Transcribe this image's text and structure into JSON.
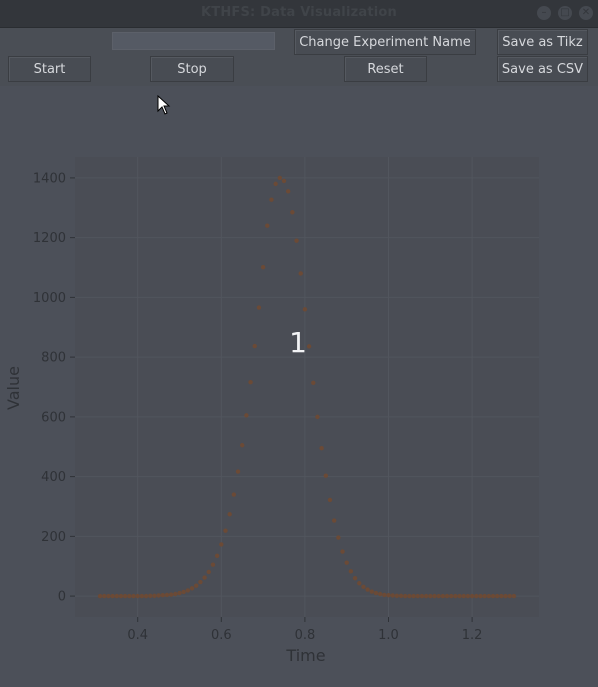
{
  "window": {
    "title": "KTHFS: Data Visualization",
    "controls": [
      "minimize-icon",
      "maximize-icon",
      "close-icon"
    ]
  },
  "toolbar": {
    "experiment_name_value": "",
    "change_name_label": "Change Experiment Name",
    "save_tikz_label": "Save as Tikz",
    "start_label": "Start",
    "stop_label": "Stop",
    "reset_label": "Reset",
    "save_csv_label": "Save as CSV"
  },
  "plot": {
    "overlay_label": "1"
  },
  "colors": {
    "background": "#4c5059",
    "plot_area": "#4a4d55",
    "marker": "#6b4a36",
    "text": "#d6d8dc",
    "axis_text": "#2f3237"
  },
  "chart_data": {
    "type": "scatter",
    "title": "",
    "xlabel": "Time",
    "ylabel": "Value",
    "xlim": [
      0.25,
      1.36
    ],
    "ylim": [
      -70,
      1470
    ],
    "xticks": [
      "0.4",
      "0.6",
      "0.8",
      "1.0",
      "1.2"
    ],
    "yticks": [
      "0",
      "200",
      "400",
      "600",
      "800",
      "1000",
      "1200",
      "1400"
    ],
    "grid": true,
    "legend": "none",
    "series": [
      {
        "x": [
          0.31,
          0.32,
          0.33,
          0.34,
          0.35,
          0.36,
          0.37,
          0.38,
          0.39,
          0.4,
          0.41,
          0.42,
          0.43,
          0.44,
          0.45,
          0.46,
          0.47,
          0.48,
          0.49,
          0.5,
          0.51,
          0.52,
          0.53,
          0.54,
          0.55,
          0.56,
          0.57,
          0.58,
          0.59,
          0.6,
          0.61,
          0.62,
          0.63,
          0.64,
          0.65,
          0.66,
          0.67,
          0.68,
          0.69,
          0.7,
          0.71,
          0.72,
          0.73,
          0.74,
          0.75,
          0.76,
          0.77,
          0.78,
          0.79,
          0.8,
          0.81,
          0.82,
          0.83,
          0.84,
          0.85,
          0.86,
          0.87,
          0.88,
          0.89,
          0.9,
          0.91,
          0.92,
          0.93,
          0.94,
          0.95,
          0.96,
          0.97,
          0.98,
          0.99,
          1.0,
          1.01,
          1.02,
          1.03,
          1.04,
          1.05,
          1.06,
          1.07,
          1.08,
          1.09,
          1.1,
          1.11,
          1.12,
          1.13,
          1.14,
          1.15,
          1.16,
          1.17,
          1.18,
          1.19,
          1.2,
          1.21,
          1.22,
          1.23,
          1.24,
          1.25,
          1.26,
          1.27,
          1.28,
          1.29,
          1.3
        ],
        "y": [
          0,
          0,
          0,
          0,
          0,
          0,
          0,
          0,
          0,
          0,
          0,
          0,
          1,
          1,
          2,
          3,
          4,
          5,
          7,
          10,
          14,
          19,
          26,
          35,
          47,
          62,
          81,
          105,
          135,
          173,
          219,
          274,
          340,
          417,
          505,
          605,
          716,
          837,
          966,
          1101,
          1240,
          1327,
          1380,
          1400,
          1390,
          1355,
          1285,
          1190,
          1080,
          960,
          836,
          714,
          600,
          495,
          403,
          322,
          253,
          196,
          149,
          112,
          83,
          60,
          43,
          31,
          22,
          15,
          10,
          7,
          4,
          3,
          2,
          1,
          1,
          0,
          0,
          0,
          0,
          0,
          0,
          0,
          0,
          0,
          0,
          0,
          0,
          0,
          0,
          0,
          0,
          0,
          0,
          0,
          0,
          0,
          0,
          0,
          0,
          0,
          0,
          0
        ]
      }
    ]
  }
}
